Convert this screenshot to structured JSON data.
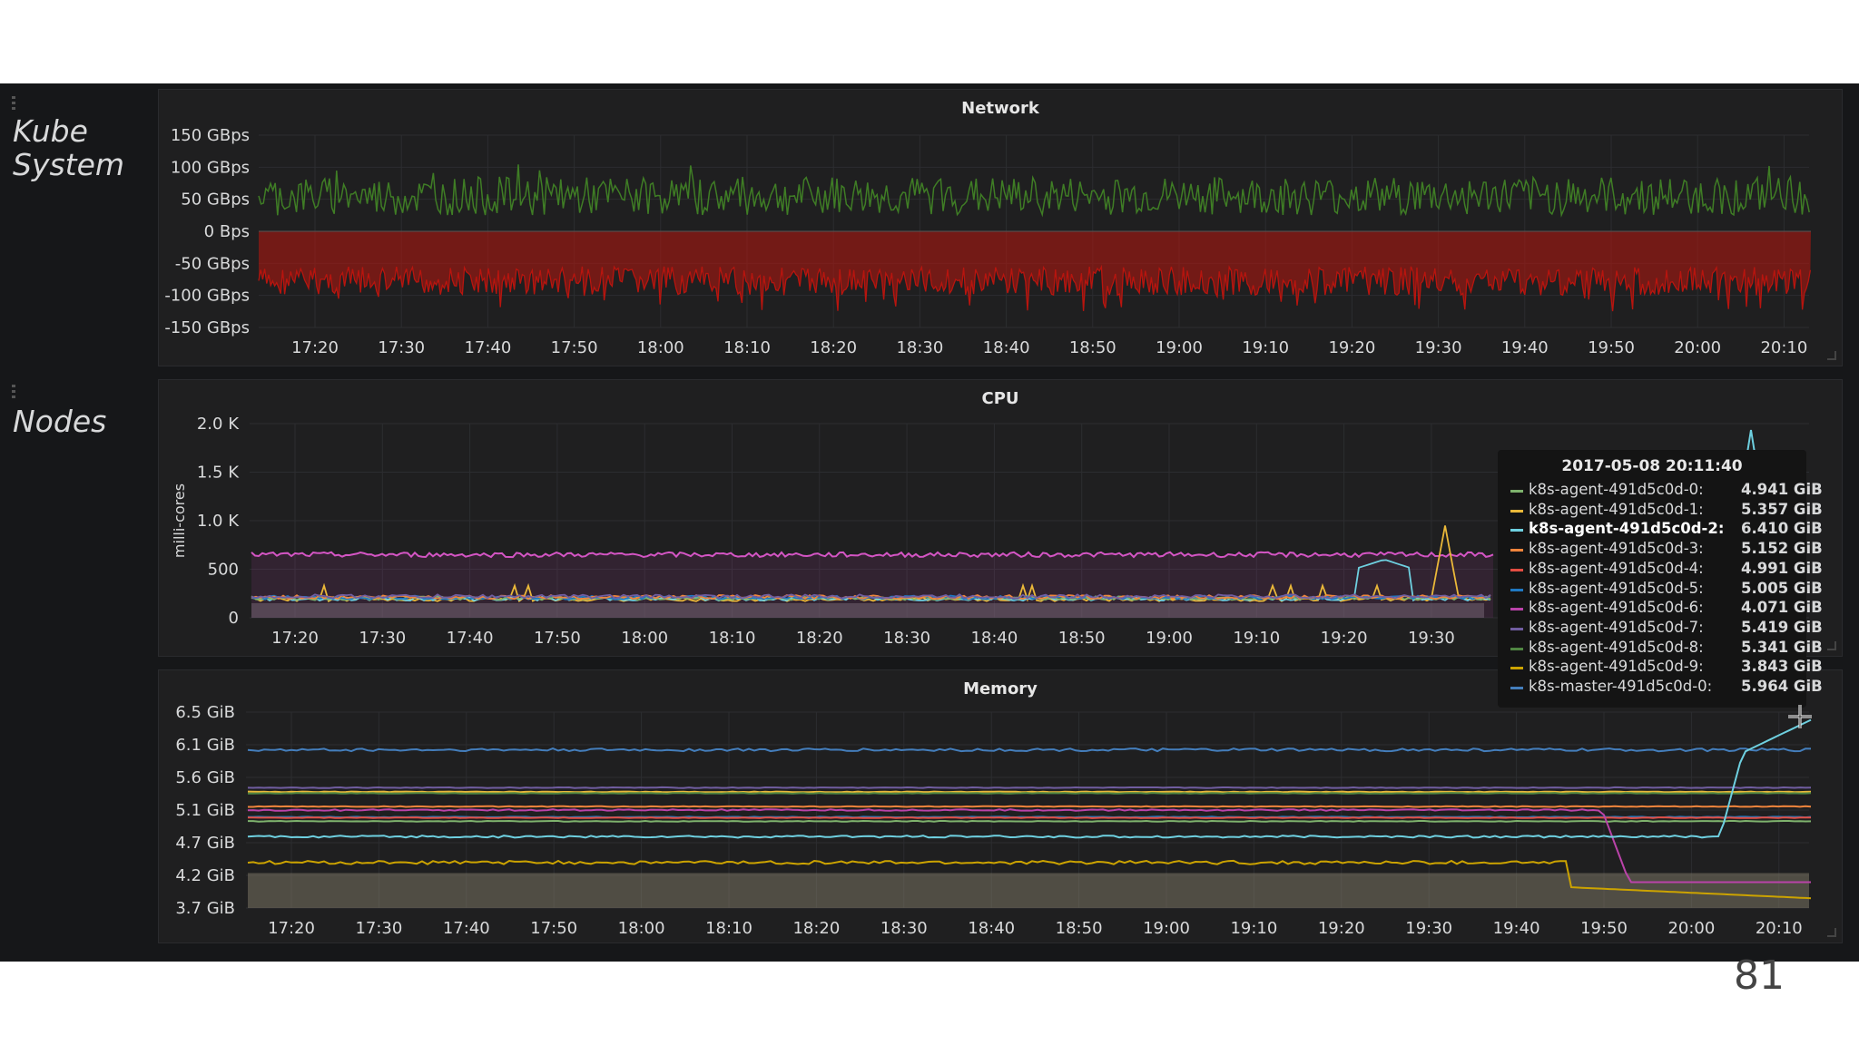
{
  "rows": [
    {
      "title_line1": "Kube",
      "title_line2": "System"
    },
    {
      "title_line1": "Nodes",
      "title_line2": ""
    }
  ],
  "panels": {
    "network": {
      "title": "Network",
      "y_ticks": [
        "150 GBps",
        "100 GBps",
        "50 GBps",
        "0 Bps",
        "-50 GBps",
        "-100 GBps",
        "-150 GBps"
      ],
      "x_ticks": [
        "17:20",
        "17:30",
        "17:40",
        "17:50",
        "18:00",
        "18:10",
        "18:20",
        "18:30",
        "18:40",
        "18:50",
        "19:00",
        "19:10",
        "19:20",
        "19:30",
        "19:40",
        "19:50",
        "20:00",
        "20:10"
      ],
      "colors": {
        "in": "#3f7d25",
        "out": "#b8150f"
      }
    },
    "cpu": {
      "title": "CPU",
      "ylabel": "milli-cores",
      "y_ticks": [
        "2.0 K",
        "1.5 K",
        "1.0 K",
        "500",
        "0"
      ],
      "x_ticks": [
        "17:20",
        "17:30",
        "17:40",
        "17:50",
        "18:00",
        "18:10",
        "18:20",
        "18:30",
        "18:40",
        "18:50",
        "19:00",
        "19:10",
        "19:20",
        "19:30"
      ]
    },
    "memory": {
      "title": "Memory",
      "y_ticks": [
        "6.5 GiB",
        "6.1 GiB",
        "5.6 GiB",
        "5.1 GiB",
        "4.7 GiB",
        "4.2 GiB",
        "3.7 GiB"
      ],
      "x_ticks": [
        "17:20",
        "17:30",
        "17:40",
        "17:50",
        "18:00",
        "18:10",
        "18:20",
        "18:30",
        "18:40",
        "18:50",
        "19:00",
        "19:10",
        "19:20",
        "19:30",
        "19:40",
        "19:50",
        "20:00",
        "20:10"
      ]
    }
  },
  "tooltip": {
    "time": "2017-05-08 20:11:40",
    "items": [
      {
        "name": "k8s-agent-491d5c0d-0:",
        "value": "4.941 GiB",
        "color": "#7eb26d"
      },
      {
        "name": "k8s-agent-491d5c0d-1:",
        "value": "5.357 GiB",
        "color": "#eab839"
      },
      {
        "name": "k8s-agent-491d5c0d-2:",
        "value": "6.410 GiB",
        "color": "#6ed0e0"
      },
      {
        "name": "k8s-agent-491d5c0d-3:",
        "value": "5.152 GiB",
        "color": "#ef843c"
      },
      {
        "name": "k8s-agent-491d5c0d-4:",
        "value": "4.991 GiB",
        "color": "#e24d42"
      },
      {
        "name": "k8s-agent-491d5c0d-5:",
        "value": "5.005 GiB",
        "color": "#1f78c1"
      },
      {
        "name": "k8s-agent-491d5c0d-6:",
        "value": "4.071 GiB",
        "color": "#ba43a9"
      },
      {
        "name": "k8s-agent-491d5c0d-7:",
        "value": "5.419 GiB",
        "color": "#705da0"
      },
      {
        "name": "k8s-agent-491d5c0d-8:",
        "value": "5.341 GiB",
        "color": "#508642"
      },
      {
        "name": "k8s-agent-491d5c0d-9:",
        "value": "3.843 GiB",
        "color": "#cca300"
      },
      {
        "name": "k8s-master-491d5c0d-0:",
        "value": "5.964 GiB",
        "color": "#447ebc"
      }
    ]
  },
  "slide_number": "81"
}
